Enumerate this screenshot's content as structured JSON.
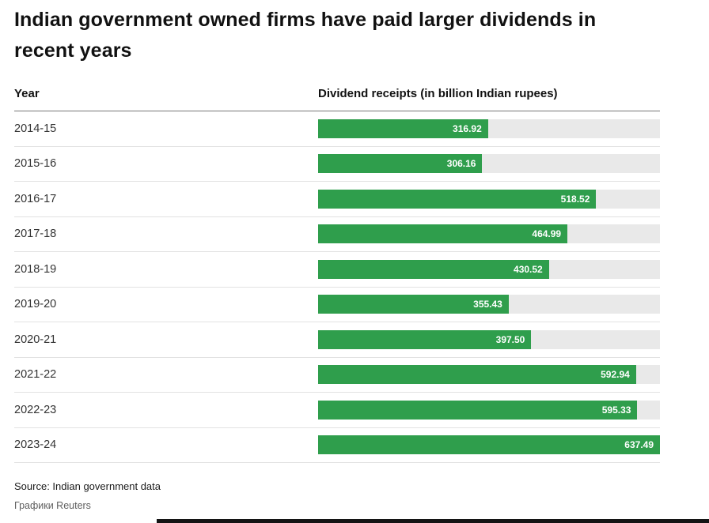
{
  "header": {
    "title": "Indian government owned firms have paid larger dividends in recent years"
  },
  "table": {
    "col_year": "Year",
    "col_value": "Dividend receipts (in billion Indian rupees)"
  },
  "chart_data": {
    "type": "bar",
    "orientation": "horizontal",
    "title": "Indian government owned firms have paid larger dividends in recent years",
    "xlabel": "Dividend receipts (in billion Indian rupees)",
    "ylabel": "Year",
    "categories": [
      "2014-15",
      "2015-16",
      "2016-17",
      "2017-18",
      "2018-19",
      "2019-20",
      "2020-21",
      "2021-22",
      "2022-23",
      "2023-24"
    ],
    "values": [
      316.92,
      306.16,
      518.52,
      464.99,
      430.52,
      355.43,
      397.5,
      592.94,
      595.33,
      637.49
    ],
    "xlim": [
      0,
      637.49
    ],
    "grid": false,
    "legend": "none",
    "value_labels": "inside-end, white, two decimals"
  },
  "colors": {
    "bar": "#2f9e4c",
    "track": "#e9e9e9",
    "title_text": "#111111",
    "body_text": "#333333"
  },
  "footer": {
    "source": "Source: Indian government data",
    "credit": "Графики Reuters"
  }
}
